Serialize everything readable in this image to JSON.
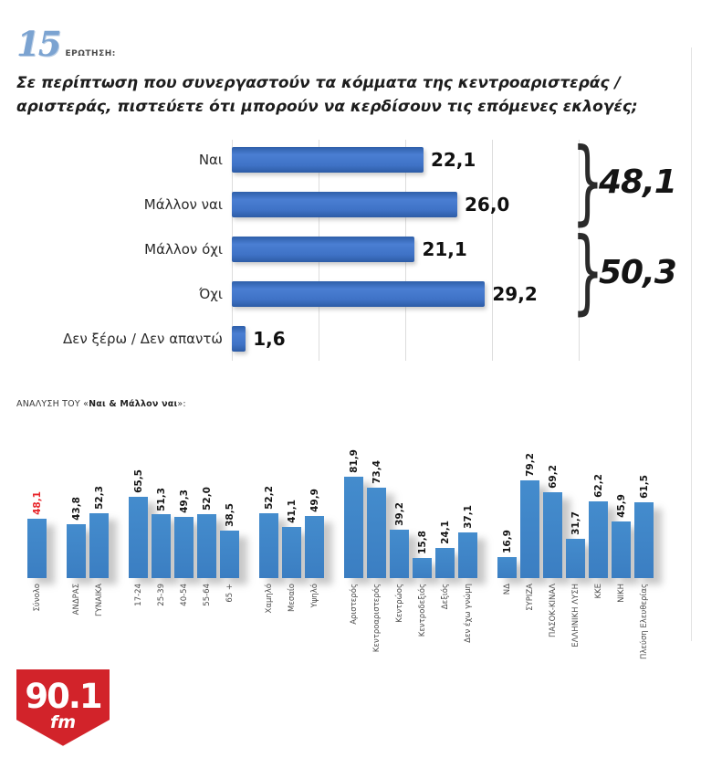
{
  "header": {
    "question_number": "15",
    "question_label": "ΕΡΩΤΗΣΗ:",
    "question_text": "Σε περίπτωση που συνεργαστούν τα κόμματα της κεντροαριστεράς / αριστεράς, πιστεύετε ότι μπορούν να κερδίσουν τις επόμενες εκλογές;"
  },
  "analysis_title": {
    "prefix": "ΑΝΑΛΥΣΗ ΤΟΥ «",
    "bold": "Ναι & Μάλλον ναι",
    "suffix": "»:"
  },
  "chart_data": [
    {
      "type": "bar",
      "orientation": "horizontal",
      "title": "",
      "categories": [
        "Ναι",
        "Μάλλον ναι",
        "Μάλλον όχι",
        "Όχι",
        "Δεν ξέρω / Δεν απαντώ"
      ],
      "values": [
        22.1,
        26.0,
        21.1,
        29.2,
        1.6
      ],
      "value_labels": [
        "22,1",
        "26,0",
        "21,1",
        "29,2",
        "1,6"
      ],
      "xlim": [
        0,
        40
      ],
      "gridline_values": [
        0,
        10,
        20,
        30,
        40
      ],
      "grid": "vertical-on",
      "bar_color": "#3a6cc0",
      "brackets": [
        {
          "label": "48,1",
          "covers": [
            "Ναι",
            "Μάλλον ναι"
          ]
        },
        {
          "label": "50,3",
          "covers": [
            "Μάλλον όχι",
            "Όχι"
          ]
        }
      ]
    },
    {
      "type": "bar",
      "orientation": "vertical",
      "title": "ΑΝΑΛΥΣΗ ΤΟΥ «Ναι & Μάλλον ναι»:",
      "ylim": [
        0,
        85
      ],
      "bar_color": "#3e85c8",
      "highlight_color": "#e8262b",
      "groups": [
        {
          "bars": [
            {
              "label": "Σύνολο",
              "value": 48.1,
              "display": "48,1",
              "highlight": true
            }
          ]
        },
        {
          "bars": [
            {
              "label": "ΑΝΔΡΑΣ",
              "value": 43.8,
              "display": "43,8"
            },
            {
              "label": "ΓΥΝΑΙΚΑ",
              "value": 52.3,
              "display": "52,3"
            }
          ]
        },
        {
          "bars": [
            {
              "label": "17-24",
              "value": 65.5,
              "display": "65,5"
            },
            {
              "label": "25-39",
              "value": 51.3,
              "display": "51,3"
            },
            {
              "label": "40-54",
              "value": 49.3,
              "display": "49,3"
            },
            {
              "label": "55-64",
              "value": 52.0,
              "display": "52,0"
            },
            {
              "label": "65 +",
              "value": 38.5,
              "display": "38,5"
            }
          ]
        },
        {
          "bars": [
            {
              "label": "Χαμηλό",
              "value": 52.2,
              "display": "52,2"
            },
            {
              "label": "Μεσαίο",
              "value": 41.1,
              "display": "41,1"
            },
            {
              "label": "Υψηλό",
              "value": 49.9,
              "display": "49,9"
            }
          ]
        },
        {
          "bars": [
            {
              "label": "Αριστερός",
              "value": 81.9,
              "display": "81,9"
            },
            {
              "label": "Κεντροαριστερός",
              "value": 73.4,
              "display": "73,4"
            },
            {
              "label": "Κεντρώος",
              "value": 39.2,
              "display": "39,2"
            },
            {
              "label": "Κεντροδεξιός",
              "value": 15.8,
              "display": "15,8"
            },
            {
              "label": "Δεξιός",
              "value": 24.1,
              "display": "24,1"
            },
            {
              "label": "Δεν έχω γνώμη",
              "value": 37.1,
              "display": "37,1"
            }
          ]
        },
        {
          "bars": [
            {
              "label": "ΝΔ",
              "value": 16.9,
              "display": "16,9"
            },
            {
              "label": "ΣΥΡΙΖΑ",
              "value": 79.2,
              "display": "79,2"
            },
            {
              "label": "ΠΑΣΟΚ-ΚΙΝΑΛ",
              "value": 69.2,
              "display": "69,2"
            },
            {
              "label": "ΕΛΛΗΝΙΚΗ ΛΥΣΗ",
              "value": 31.7,
              "display": "31,7"
            },
            {
              "label": "ΚΚΕ",
              "value": 62.2,
              "display": "62,2"
            },
            {
              "label": "ΝΙΚΗ",
              "value": 45.9,
              "display": "45,9"
            },
            {
              "label": "Πλεύση Ελευθερίας",
              "value": 61.5,
              "display": "61,5"
            }
          ]
        }
      ]
    }
  ],
  "footer": {
    "logo_line1": "90.1",
    "logo_line2": "fm",
    "logo_color": "#d2232a"
  }
}
